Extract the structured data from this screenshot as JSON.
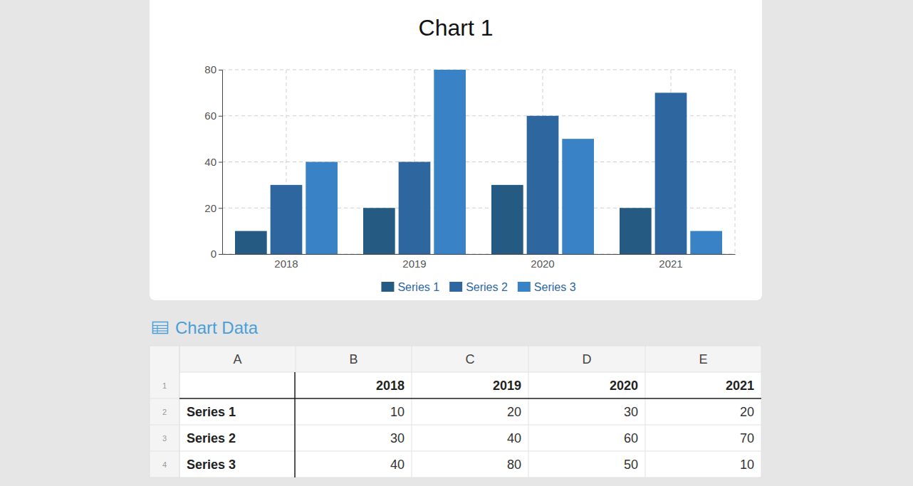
{
  "chart_data": {
    "type": "bar",
    "title": "Chart 1",
    "categories": [
      "2018",
      "2019",
      "2020",
      "2021"
    ],
    "series": [
      {
        "name": "Series 1",
        "color": "#255a82",
        "values": [
          10,
          20,
          30,
          20
        ]
      },
      {
        "name": "Series 2",
        "color": "#2e67a0",
        "values": [
          30,
          40,
          60,
          70
        ]
      },
      {
        "name": "Series 3",
        "color": "#3982c5",
        "values": [
          40,
          80,
          50,
          10
        ]
      }
    ],
    "ylim": [
      0,
      80
    ],
    "yticks": [
      0,
      20,
      40,
      60,
      80
    ],
    "grid": true,
    "legend": "bottom"
  },
  "table": {
    "title": "Chart Data",
    "column_letters": [
      "A",
      "B",
      "C",
      "D",
      "E"
    ],
    "row_numbers": [
      1,
      2,
      3,
      4
    ]
  }
}
